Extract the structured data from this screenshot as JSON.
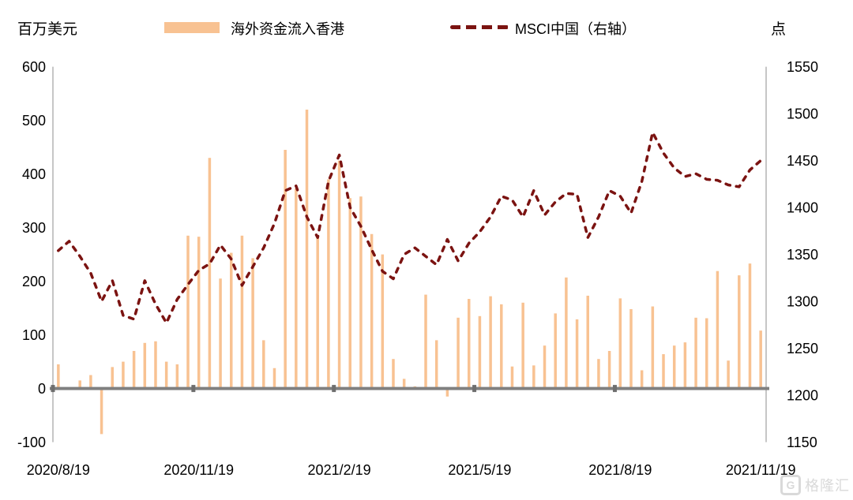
{
  "units": {
    "left": "百万美元",
    "right": "点"
  },
  "legend": {
    "bar_label": "海外资金流入香港",
    "line_label": "MSCI中国（右轴）"
  },
  "watermark": {
    "logo_letter": "G",
    "text": "格隆汇"
  },
  "colors": {
    "bar": "#F8C292",
    "line": "#7B1311",
    "axis_line": "#ADADAD",
    "zero_line": "#808080",
    "tick_mark": "#6E6E6E",
    "text": "#000000",
    "watermark": "#D9D9D9",
    "background": "#FFFFFF"
  },
  "chart_data": {
    "type": "bar+line dual-axis, weekly categories",
    "title": "",
    "n_categories": 66,
    "x_tick_labels": [
      "2020/8/19",
      "2020/11/19",
      "2021/2/19",
      "2021/5/19",
      "2021/8/19",
      "2021/11/19"
    ],
    "x_tick_category_indices": [
      0,
      13,
      26,
      39,
      52,
      65
    ],
    "x_tick_boundary_indices": [
      0,
      13,
      26,
      39,
      52
    ],
    "left_axis": {
      "unit": "百万美元",
      "min": -100,
      "max": 600,
      "step": 100,
      "ticks": [
        600,
        500,
        400,
        300,
        200,
        100,
        0,
        -100
      ]
    },
    "right_axis": {
      "unit": "点",
      "min": 1150,
      "max": 1550,
      "step": 50,
      "ticks": [
        1550,
        1500,
        1450,
        1400,
        1350,
        1300,
        1250,
        1200,
        1150
      ]
    },
    "grid": false,
    "legend_position": "top",
    "series": [
      {
        "name": "海外资金流入香港",
        "type": "bar",
        "axis": "left",
        "values": [
          45,
          0,
          15,
          25,
          -85,
          40,
          50,
          70,
          85,
          88,
          50,
          45,
          285,
          283,
          430,
          205,
          253,
          285,
          243,
          90,
          38,
          445,
          373,
          520,
          283,
          390,
          425,
          355,
          358,
          288,
          250,
          55,
          18,
          4,
          175,
          90,
          -15,
          132,
          167,
          135,
          172,
          157,
          41,
          160,
          43,
          80,
          140,
          207,
          129,
          173,
          55,
          70,
          168,
          148,
          34,
          153,
          64,
          80,
          86,
          132,
          131,
          219,
          52,
          211,
          233,
          108
        ]
      },
      {
        "name": "MSCI中国（右轴）",
        "type": "line-dashed",
        "axis": "right",
        "values": [
          1354,
          1364,
          1348,
          1330,
          1300,
          1322,
          1285,
          1281,
          1322,
          1297,
          1277,
          1302,
          1318,
          1333,
          1340,
          1360,
          1345,
          1317,
          1337,
          1357,
          1383,
          1418,
          1423,
          1390,
          1368,
          1428,
          1456,
          1400,
          1380,
          1355,
          1332,
          1324,
          1350,
          1357,
          1348,
          1339,
          1366,
          1343,
          1362,
          1374,
          1390,
          1412,
          1408,
          1390,
          1418,
          1392,
          1406,
          1415,
          1414,
          1368,
          1390,
          1418,
          1412,
          1394,
          1428,
          1480,
          1458,
          1442,
          1433,
          1436,
          1430,
          1429,
          1424,
          1422,
          1440,
          1450
        ]
      }
    ]
  }
}
